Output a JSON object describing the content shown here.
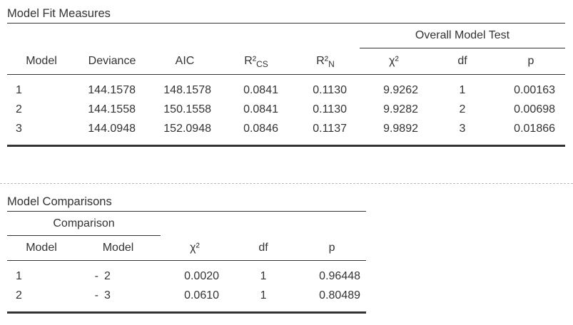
{
  "fit": {
    "title": "Model Fit Measures",
    "group_header": "Overall Model Test",
    "columns": {
      "model": "Model",
      "deviance": "Deviance",
      "aic": "AIC",
      "r2cs_base": "R²",
      "r2cs_sub": "CS",
      "r2n_base": "R²",
      "r2n_sub": "N",
      "chi2": "χ²",
      "df": "df",
      "p": "p"
    },
    "rows": [
      {
        "model": "1",
        "deviance": "144.1578",
        "aic": "148.1578",
        "r2cs": "0.0841",
        "r2n": "0.1130",
        "chi2": "9.9262",
        "df": "1",
        "p": "0.00163"
      },
      {
        "model": "2",
        "deviance": "144.1558",
        "aic": "150.1558",
        "r2cs": "0.0841",
        "r2n": "0.1130",
        "chi2": "9.9282",
        "df": "2",
        "p": "0.00698"
      },
      {
        "model": "3",
        "deviance": "144.0948",
        "aic": "152.0948",
        "r2cs": "0.0846",
        "r2n": "0.1137",
        "chi2": "9.9892",
        "df": "3",
        "p": "0.01866"
      }
    ]
  },
  "comparisons": {
    "title": "Model Comparisons",
    "group_header": "Comparison",
    "columns": {
      "model_a": "Model",
      "model_b": "Model",
      "chi2": "χ²",
      "df": "df",
      "p": "p"
    },
    "rows": [
      {
        "model_a": "1",
        "sep": "-",
        "model_b": "2",
        "chi2": "0.0020",
        "df": "1",
        "p": "0.96448"
      },
      {
        "model_a": "2",
        "sep": "-",
        "model_b": "3",
        "chi2": "0.0610",
        "df": "1",
        "p": "0.80489"
      }
    ]
  }
}
